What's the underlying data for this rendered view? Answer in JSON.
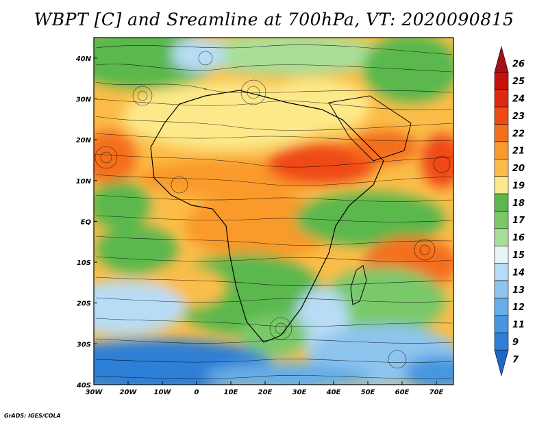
{
  "title": "WBPT [C] and Sreamline at 700hPa, VT: 2020090815",
  "credit": "GrADS: IGES/COLA",
  "map": {
    "lon_min": -30,
    "lon_max": 75,
    "lat_min": -40,
    "lat_max": 45,
    "variable": "WBPT",
    "units": "C",
    "level": "700hPa",
    "valid_time": "2020090815",
    "x_tick_labels": [
      "30W",
      "20W",
      "10W",
      "0",
      "10E",
      "20E",
      "30E",
      "40E",
      "50E",
      "60E",
      "70E"
    ],
    "x_tick_values": [
      -30,
      -20,
      -10,
      0,
      10,
      20,
      30,
      40,
      50,
      60,
      70
    ],
    "y_tick_labels": [
      "40N",
      "30N",
      "20N",
      "10N",
      "EQ",
      "10S",
      "20S",
      "30S",
      "40S"
    ],
    "y_tick_values": [
      40,
      30,
      20,
      10,
      0,
      -10,
      -20,
      -30,
      -40
    ]
  },
  "colorbar": {
    "labels": [
      "26",
      "25",
      "24",
      "23",
      "22",
      "21",
      "20",
      "19",
      "18",
      "17",
      "16",
      "15",
      "14",
      "13",
      "12",
      "11",
      "9",
      "7"
    ],
    "colors": [
      "#a50f15",
      "#c8100c",
      "#e02810",
      "#f04a14",
      "#f56e1e",
      "#f99a2c",
      "#fbbd48",
      "#fde98a",
      "#5ab84e",
      "#79c96a",
      "#a9de99",
      "#e6f6f4",
      "#b8dcf5",
      "#8ec5ef",
      "#66aee8",
      "#4696e0",
      "#2f7fd6",
      "#2167c8"
    ]
  },
  "colors": {
    "cold": "#2167c8",
    "cool": "#b8dcf5",
    "moist": "#5ab84e",
    "warm": "#fde98a",
    "hot": "#f56e1e"
  }
}
